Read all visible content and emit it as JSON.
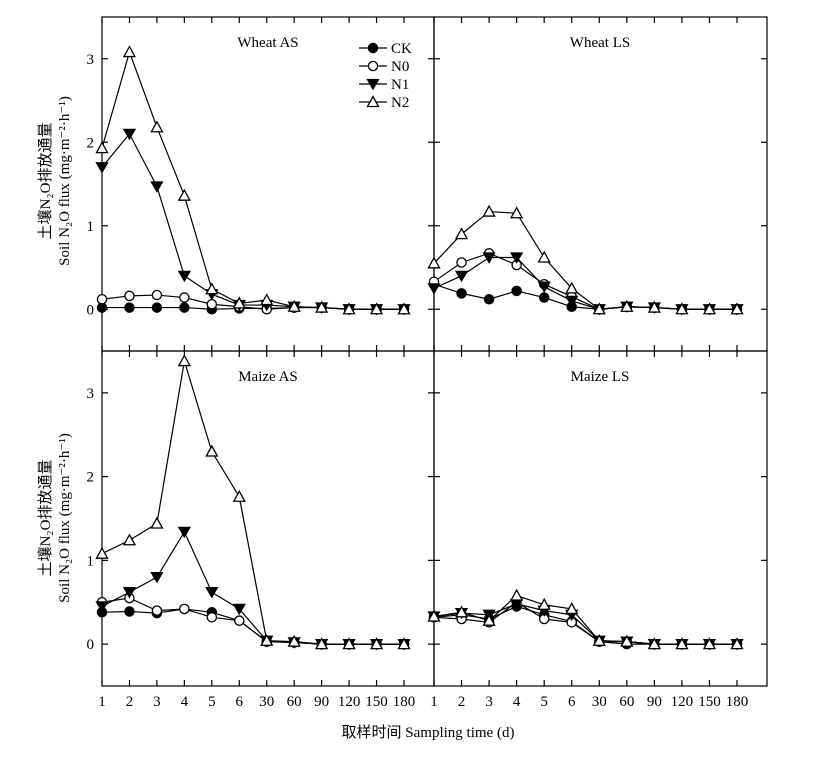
{
  "xlabel": "取样时间 Sampling time (d)",
  "ylabel_cn": "土壤N₂O排放通量",
  "ylabel_en": "Soil N₂O flux (mg·m⁻²·h⁻¹)",
  "legend": [
    {
      "name": "CK",
      "marker": "filled-circle"
    },
    {
      "name": "N0",
      "marker": "open-circle"
    },
    {
      "name": "N1",
      "marker": "filled-triangle-down"
    },
    {
      "name": "N2",
      "marker": "open-triangle-up"
    }
  ],
  "chart_data": [
    {
      "type": "line",
      "title": "Wheat AS",
      "categories": [
        "1",
        "2",
        "3",
        "4",
        "5",
        "6",
        "30",
        "60",
        "90",
        "120",
        "150",
        "180"
      ],
      "ylim": [
        -0.5,
        3.5
      ],
      "yticks": [
        0,
        1,
        2,
        3
      ],
      "series": [
        {
          "name": "CK",
          "values": [
            0.02,
            0.02,
            0.02,
            0.02,
            0.0,
            0.01,
            0.01,
            0.02,
            0.02,
            0.0,
            0.0,
            0.0
          ]
        },
        {
          "name": "N0",
          "values": [
            0.12,
            0.16,
            0.17,
            0.14,
            0.06,
            0.03,
            0.0,
            0.02,
            0.02,
            0.0,
            0.0,
            0.0
          ]
        },
        {
          "name": "N1",
          "values": [
            1.7,
            2.1,
            1.47,
            0.4,
            0.18,
            0.05,
            0.05,
            0.03,
            0.02,
            0.0,
            0.0,
            0.0
          ]
        },
        {
          "name": "N2",
          "values": [
            1.93,
            3.08,
            2.18,
            1.36,
            0.24,
            0.07,
            0.11,
            0.03,
            0.02,
            0.0,
            0.0,
            0.0
          ]
        }
      ]
    },
    {
      "type": "line",
      "title": "Wheat LS",
      "categories": [
        "1",
        "2",
        "3",
        "4",
        "5",
        "6",
        "30",
        "60",
        "90",
        "120",
        "150",
        "180"
      ],
      "ylim": [
        -0.5,
        3.5
      ],
      "yticks": [
        0,
        1,
        2,
        3
      ],
      "series": [
        {
          "name": "CK",
          "values": [
            0.3,
            0.19,
            0.12,
            0.22,
            0.14,
            0.03,
            0.0,
            0.03,
            0.02,
            0.0,
            0.0,
            0.0
          ]
        },
        {
          "name": "N0",
          "values": [
            0.33,
            0.56,
            0.67,
            0.53,
            0.3,
            0.15,
            0.0,
            0.03,
            0.02,
            0.0,
            0.0,
            0.0
          ]
        },
        {
          "name": "N1",
          "values": [
            0.25,
            0.4,
            0.62,
            0.62,
            0.27,
            0.1,
            0.0,
            0.03,
            0.02,
            0.0,
            0.0,
            0.0
          ]
        },
        {
          "name": "N2",
          "values": [
            0.55,
            0.9,
            1.17,
            1.15,
            0.62,
            0.25,
            0.0,
            0.03,
            0.02,
            0.0,
            0.0,
            0.0
          ]
        }
      ]
    },
    {
      "type": "line",
      "title": "Maize AS",
      "categories": [
        "1",
        "2",
        "3",
        "4",
        "5",
        "6",
        "30",
        "60",
        "90",
        "120",
        "150",
        "180"
      ],
      "ylim": [
        -0.5,
        3.5
      ],
      "yticks": [
        0,
        1,
        2,
        3
      ],
      "series": [
        {
          "name": "CK",
          "values": [
            0.38,
            0.39,
            0.37,
            0.42,
            0.38,
            0.28,
            0.03,
            0.02,
            0.0,
            0.0,
            0.0,
            0.0
          ]
        },
        {
          "name": "N0",
          "values": [
            0.5,
            0.55,
            0.4,
            0.42,
            0.32,
            0.28,
            0.03,
            0.02,
            0.0,
            0.0,
            0.0,
            0.0
          ]
        },
        {
          "name": "N1",
          "values": [
            0.45,
            0.62,
            0.8,
            1.34,
            0.62,
            0.42,
            0.04,
            0.02,
            0.0,
            0.0,
            0.0,
            0.0
          ]
        },
        {
          "name": "N2",
          "values": [
            1.08,
            1.24,
            1.44,
            3.38,
            2.3,
            1.76,
            0.04,
            0.03,
            0.0,
            0.0,
            0.0,
            0.0
          ]
        }
      ]
    },
    {
      "type": "line",
      "title": "Maize LS",
      "categories": [
        "1",
        "2",
        "3",
        "4",
        "5",
        "6",
        "30",
        "60",
        "90",
        "120",
        "150",
        "180"
      ],
      "ylim": [
        -0.5,
        3.5
      ],
      "yticks": [
        0,
        1,
        2,
        3
      ],
      "series": [
        {
          "name": "CK",
          "values": [
            0.32,
            0.35,
            0.3,
            0.45,
            0.35,
            0.27,
            0.03,
            0.0,
            0.0,
            0.0,
            0.0,
            0.0
          ]
        },
        {
          "name": "N0",
          "values": [
            0.32,
            0.3,
            0.26,
            0.5,
            0.3,
            0.26,
            0.03,
            0.03,
            0.0,
            0.0,
            0.0,
            0.0
          ]
        },
        {
          "name": "N1",
          "values": [
            0.33,
            0.37,
            0.35,
            0.48,
            0.4,
            0.35,
            0.04,
            0.03,
            0.0,
            0.0,
            0.0,
            0.0
          ]
        },
        {
          "name": "N2",
          "values": [
            0.33,
            0.38,
            0.28,
            0.58,
            0.47,
            0.42,
            0.04,
            0.03,
            0.0,
            0.0,
            0.0,
            0.0
          ]
        }
      ]
    }
  ]
}
